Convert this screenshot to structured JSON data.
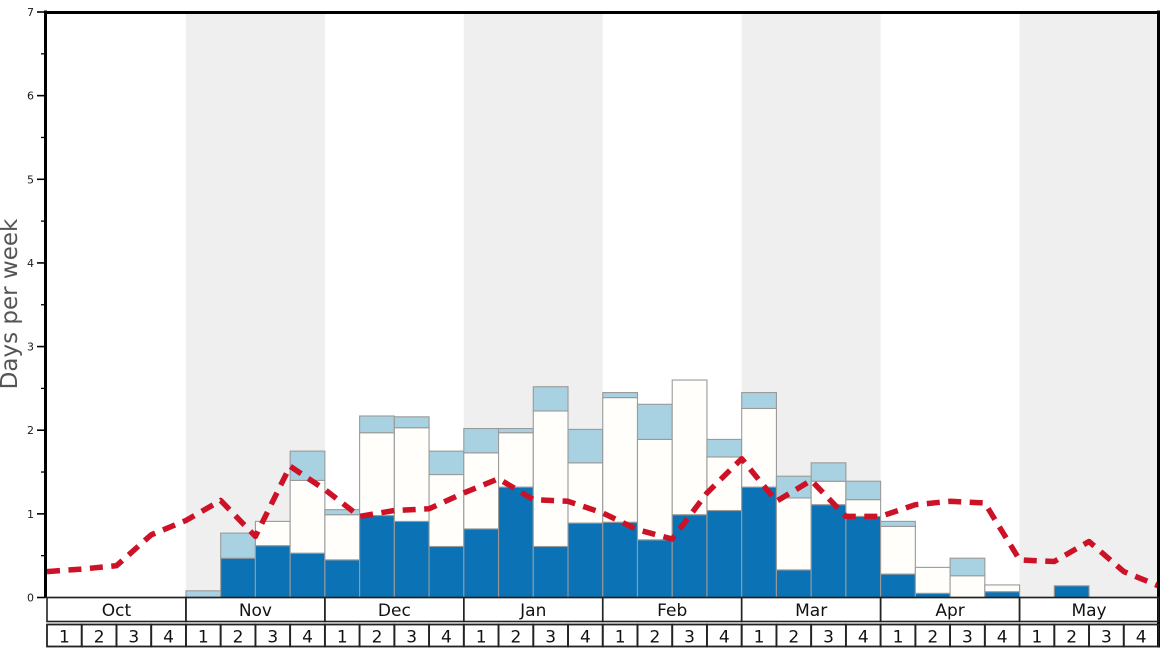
{
  "chart_data": {
    "type": "bar",
    "stacked": true,
    "title": "",
    "xlabel": "",
    "ylabel": "Days per week",
    "ylim": [
      0,
      7
    ],
    "y_ticks": [
      0,
      1,
      2,
      3,
      4,
      5,
      6,
      7
    ],
    "y_minor_tick_step": 0.5,
    "grid": false,
    "legend": "none",
    "months": [
      "Oct",
      "Nov",
      "Dec",
      "Jan",
      "Feb",
      "Mar",
      "Apr",
      "May"
    ],
    "week_labels": [
      "1",
      "2",
      "3",
      "4"
    ],
    "shaded_months": [
      false,
      true,
      false,
      true,
      false,
      true,
      false,
      true
    ],
    "background_band_color": "#efefef",
    "categories": [
      "Oct W1",
      "Oct W2",
      "Oct W3",
      "Oct W4",
      "Nov W1",
      "Nov W2",
      "Nov W3",
      "Nov W4",
      "Dec W1",
      "Dec W2",
      "Dec W3",
      "Dec W4",
      "Jan W1",
      "Jan W2",
      "Jan W3",
      "Jan W4",
      "Feb W1",
      "Feb W2",
      "Feb W3",
      "Feb W4",
      "Mar W1",
      "Mar W2",
      "Mar W3",
      "Mar W4",
      "Apr W1",
      "Apr W2",
      "Apr W3",
      "Apr W4",
      "May W1",
      "May W2",
      "May W3",
      "May W4"
    ],
    "series": [
      {
        "name": "dark blue bar segment (days/week)",
        "color": "#0b72b5",
        "values": [
          0,
          0,
          0,
          0,
          0,
          0.47,
          0.62,
          0.53,
          0.45,
          0.98,
          0.91,
          0.61,
          0.82,
          1.32,
          0.61,
          0.89,
          0.9,
          0.69,
          0.99,
          1.04,
          1.32,
          0.33,
          1.11,
          0.97,
          0.28,
          0.05,
          0,
          0.07,
          0,
          0.14,
          0,
          0
        ]
      },
      {
        "name": "white bar segment (days/week)",
        "color": "#fffefa",
        "values": [
          0,
          0,
          0,
          0,
          0,
          0,
          0.29,
          0.87,
          0.54,
          0.99,
          1.12,
          0.86,
          0.91,
          0.65,
          1.62,
          0.72,
          1.49,
          1.2,
          1.61,
          0.64,
          0.94,
          0.86,
          0.28,
          0.2,
          0.57,
          0.31,
          0.26,
          0.08,
          0,
          0,
          0,
          0
        ]
      },
      {
        "name": "light blue bar segment (days/week)",
        "color": "#a8d2e1",
        "values": [
          0,
          0,
          0,
          0,
          0.08,
          0.3,
          0,
          0.35,
          0.06,
          0.2,
          0.13,
          0.28,
          0.29,
          0.05,
          0.29,
          0.4,
          0.06,
          0.42,
          0,
          0.21,
          0.19,
          0.26,
          0.22,
          0.22,
          0.06,
          0,
          0.21,
          0,
          0,
          0,
          0,
          0
        ]
      }
    ],
    "line": {
      "name": "red dashed trend line (days/week)",
      "color": "#cd1126",
      "style": "dashed",
      "x_positions": "week boundaries, index 0-32 across Oct-May",
      "values": [
        0.31,
        0.34,
        0.38,
        0.75,
        0.92,
        1.16,
        0.73,
        1.57,
        1.29,
        0.97,
        1.04,
        1.06,
        1.25,
        1.42,
        1.17,
        1.15,
        1.01,
        0.81,
        0.7,
        1.25,
        1.66,
        1.15,
        1.4,
        0.97,
        0.97,
        1.11,
        1.15,
        1.13,
        0.45,
        0.43,
        0.67,
        0.31,
        0.14
      ]
    }
  }
}
